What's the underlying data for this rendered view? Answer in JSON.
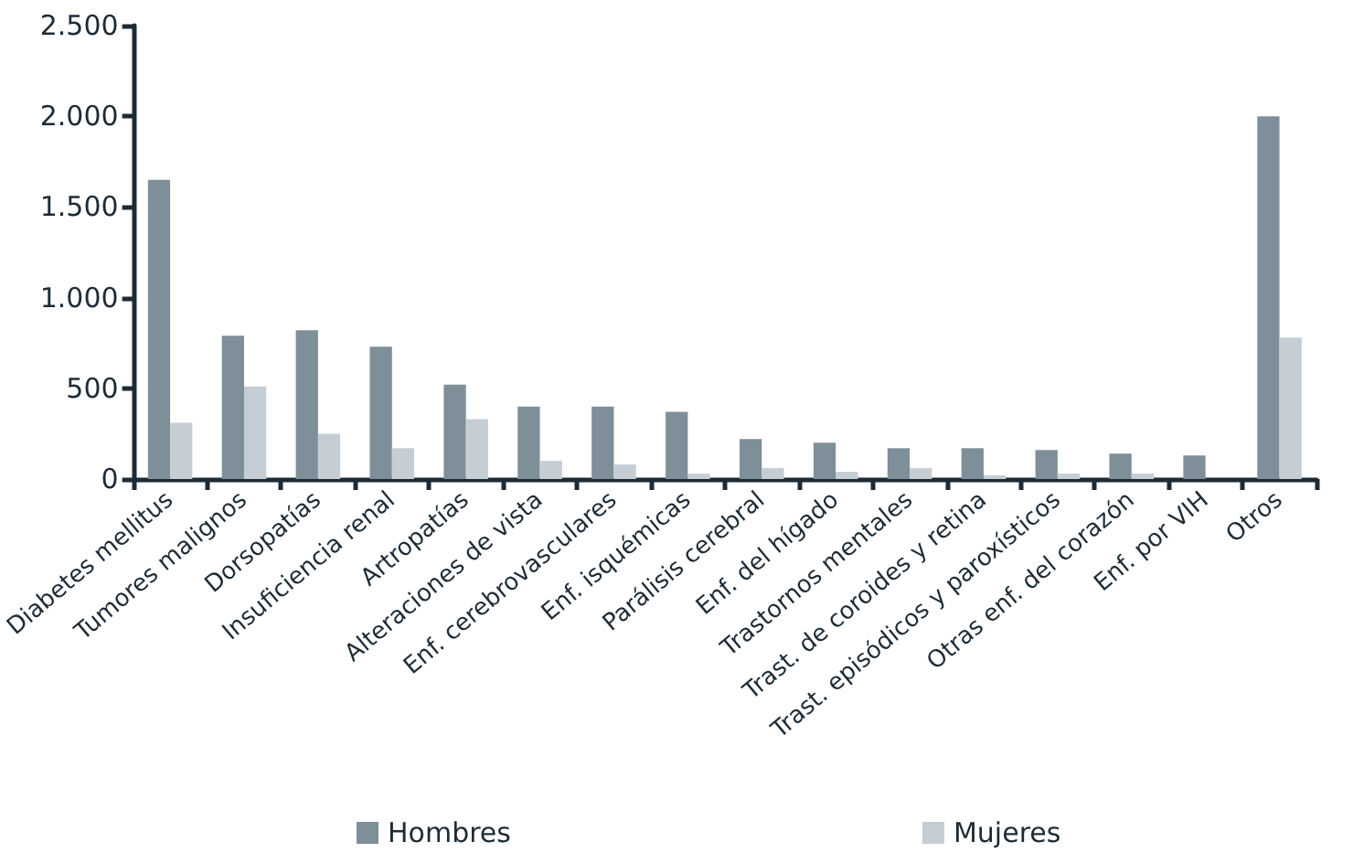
{
  "chart_data": {
    "type": "bar",
    "categories": [
      "Diabetes mellitus",
      "Tumores malignos",
      "Dorsopatías",
      "Insuficiencia renal",
      "Artropatías",
      "Alteraciones de vista",
      "Enf. cerebrovasculares",
      "Enf. isquémicas",
      "Parálisis cerebral",
      "Enf. del hígado",
      "Trastornos mentales",
      "Trast. de coroides y retina",
      "Trast. episódicos y paroxísticos",
      "Otras enf. del corazón",
      "Enf. por VIH",
      "Otros"
    ],
    "series": [
      {
        "name": "Hombres",
        "color": "#7f8f99",
        "values": [
          1650,
          790,
          820,
          730,
          520,
          400,
          400,
          370,
          220,
          200,
          170,
          170,
          160,
          140,
          130,
          2000
        ]
      },
      {
        "name": "Mujeres",
        "color": "#c5cdd5",
        "values": [
          310,
          510,
          250,
          170,
          330,
          100,
          80,
          30,
          60,
          40,
          60,
          20,
          30,
          30,
          null,
          780
        ]
      }
    ],
    "ylim": [
      0,
      2500
    ],
    "yticks": [
      {
        "value": 0,
        "label": "0"
      },
      {
        "value": 500,
        "label": "500"
      },
      {
        "value": 1000,
        "label": "1.000"
      },
      {
        "value": 1500,
        "label": "1.500"
      },
      {
        "value": 2000,
        "label": "2.000"
      },
      {
        "value": 2500,
        "label": "2.500"
      }
    ],
    "grid": false,
    "legend": "bottom"
  }
}
